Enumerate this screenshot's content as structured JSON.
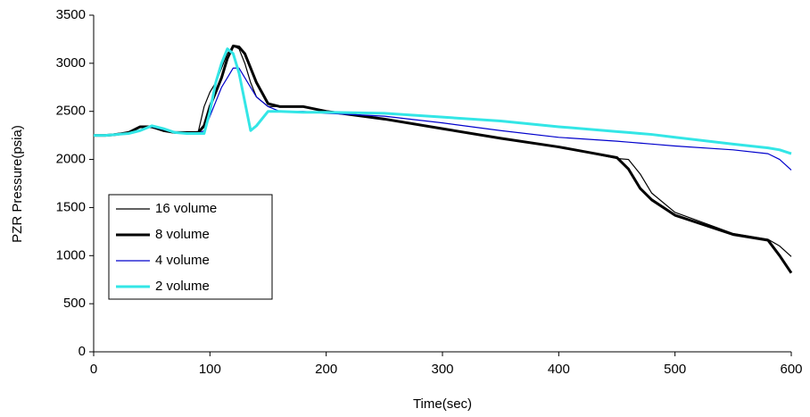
{
  "chart_data": {
    "type": "line",
    "xlabel": "Time(sec)",
    "ylabel": "PZR Pressure(psia)",
    "x": [
      0,
      10,
      20,
      30,
      40,
      50,
      60,
      70,
      80,
      90,
      95,
      100,
      105,
      110,
      115,
      120,
      125,
      130,
      135,
      140,
      150,
      160,
      180,
      200,
      250,
      300,
      350,
      400,
      450,
      460,
      470,
      480,
      500,
      550,
      580,
      590,
      600
    ],
    "series": [
      {
        "name": "16 volume",
        "color": "#000000",
        "width": 1.2,
        "values": [
          2250,
          2250,
          2270,
          2280,
          2340,
          2330,
          2300,
          2280,
          2280,
          2290,
          2550,
          2700,
          2800,
          2950,
          3100,
          3180,
          3150,
          3000,
          2800,
          2650,
          2550,
          2550,
          2550,
          2500,
          2420,
          2320,
          2220,
          2130,
          2010,
          2000,
          1850,
          1650,
          1450,
          1230,
          1170,
          1100,
          990
        ]
      },
      {
        "name": "8 volume",
        "color": "#000000",
        "width": 3,
        "values": [
          2250,
          2250,
          2260,
          2280,
          2340,
          2340,
          2300,
          2280,
          2280,
          2280,
          2350,
          2550,
          2700,
          2850,
          3050,
          3180,
          3170,
          3100,
          2950,
          2800,
          2580,
          2550,
          2550,
          2500,
          2420,
          2320,
          2220,
          2130,
          2020,
          1900,
          1700,
          1580,
          1420,
          1220,
          1160,
          1000,
          820
        ]
      },
      {
        "name": "4 volume",
        "color": "#0000cc",
        "width": 1.2,
        "values": [
          2250,
          2250,
          2260,
          2270,
          2300,
          2340,
          2310,
          2280,
          2270,
          2270,
          2300,
          2450,
          2600,
          2750,
          2850,
          2950,
          2950,
          2850,
          2750,
          2650,
          2550,
          2500,
          2500,
          2480,
          2450,
          2380,
          2300,
          2230,
          2190,
          2180,
          2170,
          2160,
          2140,
          2100,
          2060,
          2000,
          1890
        ]
      },
      {
        "name": "2 volume",
        "color": "#33e6e6",
        "width": 3,
        "values": [
          2250,
          2250,
          2260,
          2270,
          2300,
          2350,
          2320,
          2280,
          2270,
          2270,
          2270,
          2500,
          2800,
          3000,
          3150,
          3100,
          2900,
          2600,
          2300,
          2350,
          2500,
          2500,
          2490,
          2490,
          2480,
          2440,
          2400,
          2340,
          2290,
          2280,
          2270,
          2260,
          2230,
          2160,
          2120,
          2100,
          2060
        ]
      }
    ],
    "xlim": [
      0,
      600
    ],
    "xticks": [
      0,
      100,
      200,
      300,
      400,
      500,
      600
    ],
    "ylim": [
      0,
      3500
    ],
    "yticks": [
      0,
      500,
      1000,
      1500,
      2000,
      2500,
      3000,
      3500
    ],
    "legend": "lower-left"
  }
}
